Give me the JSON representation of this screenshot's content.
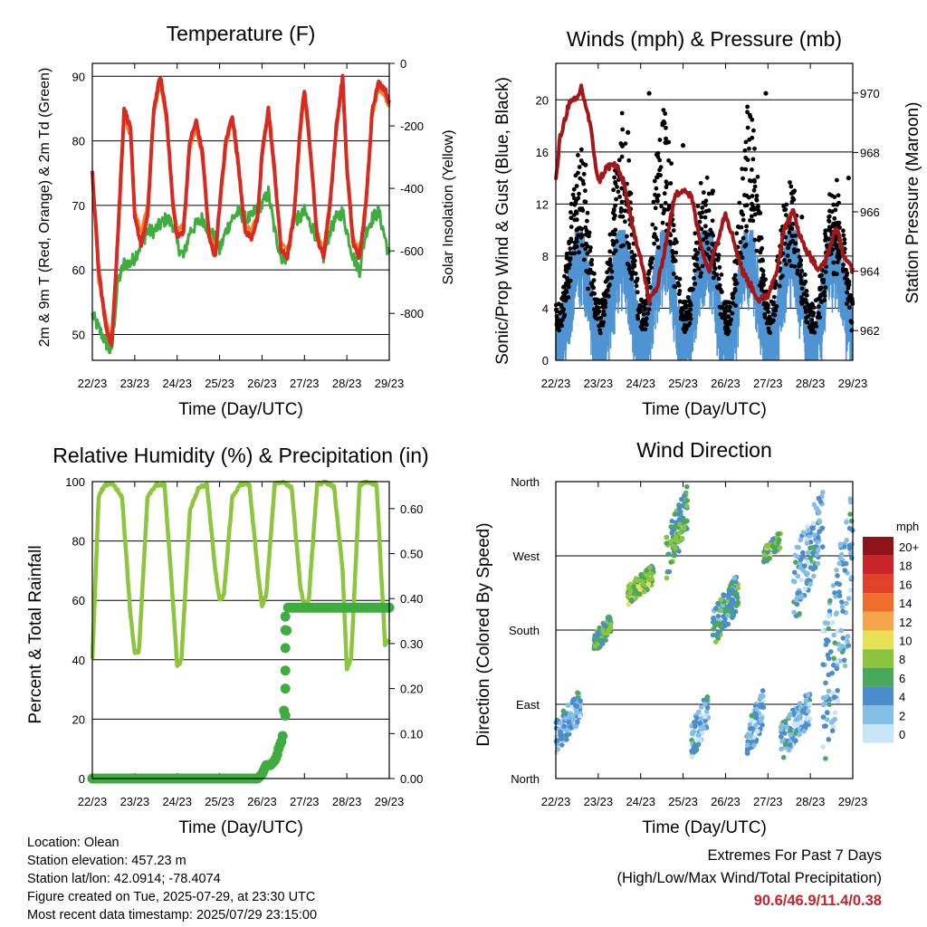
{
  "colors": {
    "t2m": "#d62a22",
    "t9m": "#f57f2b",
    "td": "#3fac3f",
    "wind": "#4e94d2",
    "gust": "#000000",
    "pressure": "#a3171a",
    "rh": "#8cc63f",
    "precip": "#3fac3f",
    "extreme": "#c0262b"
  },
  "x_ticks": [
    "22/23",
    "23/23",
    "24/23",
    "25/23",
    "26/23",
    "27/23",
    "28/23",
    "29/23"
  ],
  "chart_data": [
    {
      "id": "temperature",
      "type": "line",
      "title": "Temperature (F)",
      "xlabel": "Time (Day/UTC)",
      "ylabel": "2m & 9m T (Red, Orange) & 2m Td (Green)",
      "ylabel_right": "Solar Insolation (Yellow)",
      "ylim": [
        46,
        92
      ],
      "yticks": [
        50,
        60,
        70,
        80,
        90
      ],
      "ylim_right": [
        -950,
        0
      ],
      "yticks_right": [
        0,
        -200,
        -400,
        -600,
        -800
      ],
      "grid": true,
      "x": [
        0,
        0.15,
        0.3,
        0.45,
        0.6,
        0.75,
        0.9,
        1.0,
        1.15,
        1.3,
        1.45,
        1.6,
        1.75,
        1.9,
        2.0,
        2.15,
        2.3,
        2.45,
        2.6,
        2.75,
        2.9,
        3.0,
        3.15,
        3.3,
        3.45,
        3.6,
        3.75,
        3.9,
        4.0,
        4.15,
        4.3,
        4.45,
        4.6,
        4.75,
        4.9,
        5.0,
        5.15,
        5.3,
        5.45,
        5.6,
        5.75,
        5.9,
        6.0,
        6.15,
        6.3,
        6.45,
        6.6,
        6.75,
        6.9,
        7.0
      ],
      "series": [
        {
          "name": "2m T",
          "color_key": "t2m",
          "values": [
            75,
            60,
            52,
            48,
            65,
            85,
            82,
            68,
            64,
            68,
            85,
            90,
            84,
            70,
            65,
            66,
            80,
            83,
            78,
            65,
            62,
            70,
            80,
            84,
            76,
            66,
            65,
            68,
            78,
            85,
            75,
            63,
            62,
            68,
            82,
            88,
            78,
            65,
            62,
            70,
            82,
            90,
            76,
            64,
            62,
            70,
            85,
            89,
            88,
            86
          ]
        },
        {
          "name": "9m T",
          "color_key": "t9m",
          "values": [
            75,
            58,
            53,
            49,
            64,
            83,
            81,
            69,
            66,
            70,
            84,
            89,
            83,
            71,
            66,
            67,
            79,
            82,
            77,
            66,
            63,
            69,
            79,
            83,
            75,
            67,
            66,
            69,
            77,
            84,
            74,
            64,
            63,
            69,
            81,
            87,
            77,
            66,
            63,
            71,
            81,
            89,
            75,
            65,
            63,
            71,
            84,
            88,
            87,
            85
          ]
        },
        {
          "name": "2m Td",
          "color_key": "td",
          "values": [
            53,
            51,
            49,
            47,
            58,
            61,
            61,
            62,
            64,
            66,
            66,
            67,
            68,
            67,
            64,
            62,
            66,
            67,
            68,
            66,
            65,
            63,
            66,
            68,
            69,
            68,
            68,
            70,
            70,
            72,
            66,
            62,
            62,
            68,
            68,
            69,
            67,
            65,
            62,
            66,
            68,
            69,
            66,
            62,
            60,
            66,
            68,
            69,
            65,
            62
          ]
        }
      ]
    },
    {
      "id": "winds",
      "type": "scatter",
      "title": "Winds (mph) & Pressure (mb)",
      "xlabel": "Time (Day/UTC)",
      "ylabel": "Sonic/Prop Wind & Gust (Blue, Black)",
      "ylabel_right": "Station Pressure (Maroon)",
      "ylim": [
        0,
        22.8
      ],
      "yticks": [
        0,
        4,
        8,
        12,
        16,
        20
      ],
      "ylim_right": [
        961,
        971
      ],
      "yticks_right": [
        962,
        964,
        966,
        968,
        970
      ],
      "grid": true,
      "gust_peaks": [
        {
          "x": 0.7,
          "y": 15
        },
        {
          "x": 1.7,
          "y": 17.5
        },
        {
          "x": 2.2,
          "y": 20.5
        },
        {
          "x": 3.0,
          "y": 16.5
        },
        {
          "x": 3.7,
          "y": 13
        },
        {
          "x": 4.95,
          "y": 20.5
        },
        {
          "x": 5.8,
          "y": 11
        },
        {
          "x": 6.9,
          "y": 14
        }
      ],
      "pressure": {
        "x": [
          0,
          0.1,
          0.3,
          0.5,
          0.6,
          0.8,
          1.0,
          1.2,
          1.4,
          1.6,
          1.8,
          2.0,
          2.2,
          2.4,
          2.6,
          2.8,
          3.0,
          3.2,
          3.4,
          3.6,
          3.8,
          4.0,
          4.2,
          4.4,
          4.6,
          4.8,
          5.0,
          5.2,
          5.4,
          5.6,
          5.8,
          6.0,
          6.2,
          6.4,
          6.6,
          6.8,
          7.0
        ],
        "values": [
          967,
          968.5,
          969.6,
          969.8,
          970.2,
          969.0,
          967.0,
          967.5,
          967.6,
          967.0,
          965.5,
          964.5,
          963.0,
          963.5,
          965.0,
          966.5,
          966.8,
          966.5,
          965.0,
          964.0,
          965.0,
          966.0,
          965.0,
          964.0,
          963.5,
          963.0,
          963.2,
          964.0,
          965.5,
          966.0,
          965.0,
          964.5,
          964.0,
          964.5,
          965.5,
          964.5,
          964.0
        ]
      }
    },
    {
      "id": "humidity",
      "type": "line",
      "title": "Relative Humidity (%) & Precipitation (in)",
      "xlabel": "Time (Day/UTC)",
      "ylabel": "Percent & Total Rainfall",
      "ylim": [
        0,
        100
      ],
      "yticks": [
        0,
        20,
        40,
        60,
        80,
        100
      ],
      "ylim_right": [
        0,
        0.66
      ],
      "yticks_right": [
        "0.00",
        "0.10",
        "0.20",
        "0.30",
        "0.40",
        "0.50",
        "0.60"
      ],
      "grid": true,
      "rh": {
        "x": [
          0,
          0.15,
          0.3,
          0.5,
          0.7,
          0.9,
          1.0,
          1.1,
          1.3,
          1.5,
          1.7,
          1.9,
          2.0,
          2.1,
          2.3,
          2.5,
          2.7,
          2.9,
          3.0,
          3.1,
          3.3,
          3.5,
          3.7,
          3.9,
          4.0,
          4.1,
          4.3,
          4.5,
          4.7,
          4.9,
          5.0,
          5.1,
          5.3,
          5.5,
          5.7,
          5.9,
          6.0,
          6.1,
          6.3,
          6.5,
          6.7,
          6.9,
          7.0
        ],
        "values": [
          40,
          95,
          99,
          99,
          95,
          55,
          42,
          43,
          95,
          99,
          99,
          60,
          38,
          40,
          90,
          98,
          99,
          70,
          60,
          62,
          95,
          99,
          99,
          70,
          58,
          62,
          99,
          100,
          98,
          65,
          58,
          60,
          99,
          100,
          98,
          70,
          37,
          40,
          99,
          100,
          99,
          45,
          47
        ]
      },
      "precip": {
        "x": [
          0,
          3.9,
          4.0,
          4.1,
          4.2,
          4.3,
          4.35,
          4.4,
          4.45,
          4.5,
          4.55,
          4.6,
          4.7,
          5.0,
          6.0,
          7.0
        ],
        "values": [
          0,
          0,
          0.01,
          0.03,
          0.03,
          0.04,
          0.05,
          0.07,
          0.08,
          0.1,
          0.24,
          0.38,
          0.38,
          0.38,
          0.38,
          0.38
        ]
      }
    },
    {
      "id": "direction",
      "type": "scatter",
      "title": "Wind Direction",
      "xlabel": "Time (Day/UTC)",
      "ylabel": "Direction (Colored By Speed)",
      "ylabels": [
        "North",
        "East",
        "South",
        "West",
        "North"
      ],
      "ylim": [
        0,
        360
      ],
      "grid": true,
      "colorbar": {
        "unit": "mph",
        "labels": [
          "20+",
          "18",
          "16",
          "14",
          "12",
          "10",
          "8",
          "6",
          "4",
          "2",
          "0"
        ],
        "colors": [
          "#8f1418",
          "#c8242a",
          "#e1402b",
          "#f06c2a",
          "#f6a64a",
          "#e8e055",
          "#8bc540",
          "#4aa85a",
          "#4d8ccc",
          "#84bde6",
          "#c8e6f8"
        ]
      },
      "clusters": [
        {
          "x0": 0,
          "x1": 0.6,
          "d0": 30,
          "d1": 110,
          "speed": 3
        },
        {
          "x0": 0.9,
          "x1": 1.3,
          "d0": 150,
          "d1": 200,
          "speed": 6
        },
        {
          "x0": 1.7,
          "x1": 2.3,
          "d0": 210,
          "d1": 260,
          "speed": 7
        },
        {
          "x0": 2.6,
          "x1": 3.1,
          "d0": 240,
          "d1": 355,
          "speed": 6
        },
        {
          "x0": 3.2,
          "x1": 3.6,
          "d0": 20,
          "d1": 110,
          "speed": 3
        },
        {
          "x0": 3.7,
          "x1": 4.3,
          "d0": 160,
          "d1": 250,
          "speed": 5
        },
        {
          "x0": 4.5,
          "x1": 4.9,
          "d0": 20,
          "d1": 110,
          "speed": 3
        },
        {
          "x0": 4.9,
          "x1": 5.3,
          "d0": 260,
          "d1": 300,
          "speed": 7
        },
        {
          "x0": 5.3,
          "x1": 6.0,
          "d0": 20,
          "d1": 110,
          "speed": 3
        },
        {
          "x0": 5.6,
          "x1": 6.3,
          "d0": 180,
          "d1": 360,
          "speed": 3
        },
        {
          "x0": 6.3,
          "x1": 7.0,
          "d0": 0,
          "d1": 360,
          "speed": 3
        }
      ]
    }
  ],
  "info": {
    "location": "Location: Olean",
    "elevation": "Station elevation: 457.23 m",
    "latlon": "Station lat/lon: 42.0914; -78.4074",
    "created": "Figure created on Tue, 2025-07-29, at 23:30 UTC",
    "recent": "Most recent data timestamp: 2025/07/29 23:15:00"
  },
  "extremes": {
    "line1": "Extremes For Past 7 Days",
    "line2": "(High/Low/Max Wind/Total Precipitation)",
    "values": "90.6/46.9/11.4/0.38"
  }
}
